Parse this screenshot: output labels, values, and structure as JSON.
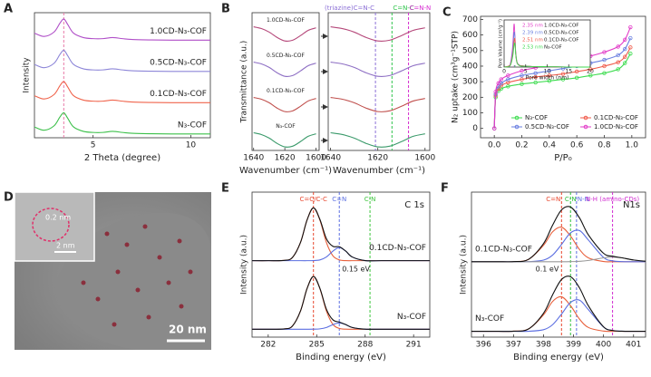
{
  "chart_data": [
    {
      "type": "line",
      "panel_label": "A",
      "xlabel": "2 Theta (degree)",
      "ylabel": "Intensity",
      "xlim": [
        2,
        11
      ],
      "xticks": [
        5,
        10
      ],
      "ylim": [
        -0.1,
        3.9
      ],
      "x": [
        2,
        2.5,
        3,
        3.3,
        3.5,
        3.7,
        4,
        4.5,
        5,
        5.5,
        6,
        6.5,
        7,
        8,
        9,
        10,
        11
      ],
      "series": [
        {
          "name": "1.0CD-N₃-COF",
          "color": "#b04fc8",
          "values": [
            3.245,
            3.14,
            3.28,
            3.56,
            3.7,
            3.525,
            3.245,
            3.105,
            3.07,
            3.07,
            3.105,
            3.07,
            3.042,
            3.028,
            3.021,
            3.021,
            3.021
          ]
        },
        {
          "name": "0.5CD-N₃-COF",
          "color": "#8d86d8",
          "values": [
            2.245,
            2.14,
            2.28,
            2.56,
            2.7,
            2.525,
            2.245,
            2.105,
            2.07,
            2.07,
            2.105,
            2.07,
            2.042,
            2.028,
            2.021,
            2.021,
            2.021
          ]
        },
        {
          "name": "0.1CD-N₃-COF",
          "color": "#f0644c",
          "values": [
            1.245,
            1.14,
            1.28,
            1.56,
            1.7,
            1.525,
            1.245,
            1.105,
            1.07,
            1.07,
            1.105,
            1.07,
            1.042,
            1.028,
            1.021,
            1.021,
            1.021
          ]
        },
        {
          "name": "N₃-COF",
          "color": "#3cc04a",
          "values": [
            0.245,
            0.14,
            0.28,
            0.56,
            0.7,
            0.525,
            0.245,
            0.105,
            0.07,
            0.07,
            0.105,
            0.07,
            0.042,
            0.028,
            0.021,
            0.021,
            0.021
          ]
        }
      ],
      "vlines": [
        {
          "value": 3.5,
          "color": "#e87aa8"
        }
      ]
    },
    {
      "type": "line",
      "panel_label": "B",
      "xlabel": "Wavenumber (cm⁻¹)",
      "ylabel": "Transmittance (a.u.)",
      "xlim": [
        1641,
        1598
      ],
      "xticks": [
        1640,
        1620,
        1600
      ],
      "ylim": [
        0,
        3.9
      ],
      "x": [
        1640,
        1635,
        1630,
        1625,
        1620,
        1615,
        1610,
        1605,
        1600
      ],
      "series": [
        {
          "name": "1.0CD-N₃-COF",
          "color": "#b5487a",
          "values": [
            3.5,
            3.45,
            3.35,
            3.2,
            3.1,
            3.12,
            3.25,
            3.4,
            3.47
          ]
        },
        {
          "name": "0.5CD-N₃-COF",
          "color": "#8e6fc4",
          "values": [
            2.5,
            2.45,
            2.35,
            2.2,
            2.1,
            2.12,
            2.25,
            2.4,
            2.47
          ]
        },
        {
          "name": "0.1CD-N₃-COF",
          "color": "#c0504d",
          "values": [
            1.5,
            1.45,
            1.35,
            1.2,
            1.1,
            1.12,
            1.25,
            1.4,
            1.47
          ]
        },
        {
          "name": "N₃-COF",
          "color": "#3a9a6a",
          "values": [
            0.5,
            0.45,
            0.35,
            0.2,
            0.1,
            0.12,
            0.25,
            0.4,
            0.47
          ]
        }
      ]
    },
    {
      "type": "line",
      "xlabel": "Wavenumber (cm⁻¹)",
      "xlim": [
        1641,
        1598
      ],
      "xticks": [
        1640,
        1620,
        1600
      ],
      "ylim": [
        0,
        3.9
      ],
      "x": [
        1640,
        1635,
        1630,
        1625,
        1620,
        1615,
        1610,
        1605,
        1600
      ],
      "series": [
        {
          "color": "#b5487a",
          "values": [
            3.5,
            3.45,
            3.35,
            3.2,
            3.1,
            3.12,
            3.25,
            3.4,
            3.47
          ]
        },
        {
          "color": "#8e6fc4",
          "values": [
            2.5,
            2.45,
            2.35,
            2.2,
            2.1,
            2.12,
            2.25,
            2.4,
            2.47
          ]
        },
        {
          "color": "#c0504d",
          "values": [
            1.5,
            1.45,
            1.35,
            1.2,
            1.1,
            1.12,
            1.25,
            1.4,
            1.47
          ]
        },
        {
          "color": "#3a9a6a",
          "values": [
            0.5,
            0.45,
            0.35,
            0.2,
            0.1,
            0.12,
            0.25,
            0.4,
            0.47
          ]
        }
      ],
      "vlines": [
        {
          "value": 1621,
          "label": "(triazine)C=N-C",
          "color": "#8b6fd6"
        },
        {
          "value": 1614,
          "label": "C=N-C",
          "color": "#2ec44a"
        },
        {
          "value": 1607,
          "label": "C=N-N",
          "color": "#d62bd0"
        }
      ]
    },
    {
      "type": "line",
      "markers": true,
      "panel_label": "C",
      "xlabel": "P/P₀",
      "ylabel": "N₂ uptake (cm³g⁻¹STP)",
      "xlim": [
        -0.1,
        1.1
      ],
      "xticks": [
        {
          "value": 0,
          "label": "0.0"
        },
        0.2,
        0.4,
        0.6,
        0.8,
        {
          "value": 1,
          "label": "1.0"
        }
      ],
      "ylim": [
        -60,
        720
      ],
      "yticks": [
        0,
        100,
        200,
        300,
        400,
        500,
        600,
        700
      ],
      "legend": "lower right",
      "x": [
        0,
        0.01,
        0.03,
        0.05,
        0.1,
        0.2,
        0.3,
        0.4,
        0.5,
        0.6,
        0.7,
        0.8,
        0.9,
        0.95,
        0.99
      ],
      "series": [
        {
          "name": "N₃-COF",
          "color": "#3ddc4f",
          "values": [
            0,
            200,
            240,
            255,
            270,
            285,
            295,
            305,
            315,
            325,
            340,
            355,
            380,
            420,
            480
          ]
        },
        {
          "name": "0.1CD-N₃-COF",
          "color": "#f05a4a",
          "values": [
            0,
            210,
            255,
            275,
            295,
            315,
            330,
            340,
            350,
            365,
            380,
            400,
            425,
            460,
            520
          ]
        },
        {
          "name": "0.5CD-N₃-COF",
          "color": "#6a7fe0",
          "values": [
            0,
            220,
            270,
            290,
            315,
            340,
            355,
            370,
            385,
            400,
            420,
            440,
            470,
            510,
            580
          ]
        },
        {
          "name": "1.0CD-N₃-COF",
          "color": "#e23cc8",
          "values": [
            0,
            235,
            290,
            315,
            340,
            370,
            390,
            410,
            425,
            445,
            465,
            490,
            525,
            570,
            650
          ]
        }
      ]
    },
    {
      "type": "line",
      "inset": true,
      "xlabel": "Pore width (nm)",
      "ylabel": "Pore Volume (cm³g⁻¹)",
      "xlim": [
        0,
        20
      ],
      "xticks": [
        0,
        5,
        10,
        15,
        20
      ],
      "ylim": [
        0,
        1.1
      ],
      "x": [
        0,
        1,
        1.5,
        2,
        2.3,
        2.5,
        2.7,
        3,
        3.5,
        4,
        5,
        7,
        10,
        15,
        20
      ],
      "series": [
        {
          "name": "1.0CD-N₃-COF",
          "color": "#e23cc8",
          "values": [
            0,
            0.02,
            0.1,
            0.5,
            1.0,
            0.75,
            0.35,
            0.12,
            0.05,
            0.03,
            0.02,
            0.01,
            0.01,
            0,
            0
          ]
        },
        {
          "name": "0.5CD-N₃-COF",
          "color": "#6a7fe0",
          "values": [
            0,
            0.02,
            0.08,
            0.4,
            0.8,
            0.7,
            0.3,
            0.1,
            0.04,
            0.03,
            0.02,
            0.01,
            0.01,
            0,
            0
          ]
        },
        {
          "name": "0.1CD-N₃-COF",
          "color": "#f05a4a",
          "values": [
            0,
            0.02,
            0.06,
            0.3,
            0.6,
            0.65,
            0.3,
            0.1,
            0.04,
            0.03,
            0.02,
            0.01,
            0.01,
            0,
            0
          ]
        },
        {
          "name": "N₃-COF",
          "color": "#3ddc4f",
          "values": [
            0,
            0.01,
            0.05,
            0.25,
            0.5,
            0.55,
            0.3,
            0.1,
            0.04,
            0.02,
            0.02,
            0.01,
            0.01,
            0,
            0
          ]
        }
      ],
      "peaks": [
        2.35,
        2.39,
        2.51,
        2.53
      ],
      "peak_labels": [
        "2.35 nm",
        "2.39 nm",
        "2.51 nm",
        "2.53 nm"
      ]
    },
    {
      "type": "line",
      "panel_label": "E",
      "xlabel": "Binding energy (eV)",
      "ylabel": "Intensity (a.u.)",
      "xlim": [
        281,
        292
      ],
      "xticks": [
        282,
        285,
        288,
        291
      ],
      "ylim": [
        -0.15,
        2.6
      ],
      "x": [
        281,
        282,
        283,
        283.5,
        284,
        284.4,
        284.8,
        285.2,
        285.6,
        286,
        286.4,
        286.8,
        287.2,
        288,
        289,
        290,
        291,
        292
      ],
      "series": [
        {
          "color": "#e8603c",
          "values": [
            1.3,
            1.3,
            1.305,
            1.361,
            1.647,
            2.068,
            2.3,
            2.068,
            1.647,
            1.393,
            1.315,
            1.301,
            1.3,
            1.3,
            1.3,
            1.3,
            1.3,
            1.3
          ]
        },
        {
          "color": "#5b6ee1",
          "values": [
            1.3,
            1.3,
            1.3,
            1.3,
            1.3,
            1.3,
            1.302,
            1.314,
            1.37,
            1.48,
            1.55,
            1.48,
            1.37,
            1.302,
            1.3,
            1.3,
            1.3,
            1.3
          ]
        },
        {
          "color": "#111111",
          "values": [
            1.3,
            1.3,
            1.305,
            1.361,
            1.647,
            2.068,
            2.302,
            2.082,
            1.717,
            1.573,
            1.565,
            1.481,
            1.37,
            1.302,
            1.3,
            1.3,
            1.3,
            1.3
          ]
        },
        {
          "color": "#e8603c",
          "values": [
            0,
            0,
            0.005,
            0.061,
            0.347,
            0.768,
            1,
            0.768,
            0.347,
            0.093,
            0.015,
            0.001,
            0,
            0,
            0,
            0,
            0,
            0
          ]
        },
        {
          "color": "#5b6ee1",
          "values": [
            0,
            0,
            0,
            0,
            0,
            0,
            0.001,
            0.007,
            0.033,
            0.087,
            0.12,
            0.087,
            0.033,
            0.001,
            0,
            0,
            0,
            0
          ]
        },
        {
          "color": "#111111",
          "values": [
            0,
            0,
            0.005,
            0.061,
            0.347,
            0.768,
            1.001,
            0.775,
            0.38,
            0.18,
            0.135,
            0.088,
            0.033,
            0.001,
            0,
            0,
            0,
            0
          ]
        }
      ],
      "vlines": [
        {
          "value": 284.8,
          "label": "C=C/C-C",
          "color": "#e8452c"
        },
        {
          "value": 286.4,
          "label": "C=N",
          "color": "#5b6ee1"
        },
        {
          "value": 288.3,
          "label": "C-N",
          "color": "#3cc43c"
        }
      ],
      "set_labels": [
        "0.1CD-N₃-COF",
        "N₃-COF"
      ],
      "core_level": "C 1s",
      "annotations": [
        "0.15 eV"
      ]
    },
    {
      "type": "line",
      "panel_label": "F",
      "xlabel": "Binding energy (eV)",
      "ylabel": "Intensity (a.u.)",
      "xlim": [
        395.6,
        401.4
      ],
      "xticks": [
        396,
        397,
        398,
        399,
        400,
        401
      ],
      "ylim": [
        -0.1,
        2.4
      ],
      "x": [
        395.6,
        396,
        396.5,
        397,
        397.5,
        398,
        398.3,
        398.6,
        398.9,
        399.2,
        399.5,
        400,
        400.3,
        400.6,
        401,
        401.4
      ],
      "series": [
        {
          "color": "#e8603c",
          "values": [
            1.2,
            1.2,
            1.2,
            1.202,
            1.24,
            1.484,
            1.714,
            1.796,
            1.643,
            1.411,
            1.265,
            1.204,
            1.2,
            1.2,
            1.2,
            1.2
          ]
        },
        {
          "color": "#5b6ee1",
          "values": [
            1.2,
            1.2,
            1.2,
            1.2,
            1.201,
            1.228,
            1.313,
            1.497,
            1.698,
            1.737,
            1.571,
            1.274,
            1.215,
            1.202,
            1.2,
            1.2
          ]
        },
        {
          "color": "#999999",
          "values": [
            1.2,
            1.2,
            1.2,
            1.2,
            1.2,
            1.2,
            1.2,
            1.2,
            1.202,
            1.207,
            1.222,
            1.267,
            1.28,
            1.267,
            1.23,
            1.207
          ]
        },
        {
          "color": "#111111",
          "values": [
            1.2,
            1.2,
            1.2,
            1.202,
            1.241,
            1.512,
            1.827,
            2.093,
            2.143,
            1.955,
            1.658,
            1.345,
            1.295,
            1.269,
            1.23,
            1.207
          ]
        },
        {
          "color": "#e8603c",
          "values": [
            0,
            0,
            0,
            0.002,
            0.04,
            0.284,
            0.514,
            0.596,
            0.443,
            0.211,
            0.065,
            0.004,
            0,
            0,
            0,
            0
          ]
        },
        {
          "color": "#5b6ee1",
          "values": [
            0,
            0,
            0,
            0,
            0.001,
            0.028,
            0.113,
            0.297,
            0.498,
            0.537,
            0.371,
            0.074,
            0.015,
            0.002,
            0,
            0
          ]
        },
        {
          "color": "#111111",
          "values": [
            0,
            0,
            0,
            0.002,
            0.041,
            0.312,
            0.627,
            0.893,
            0.941,
            0.748,
            0.436,
            0.078,
            0.015,
            0.002,
            0,
            0
          ]
        }
      ],
      "vlines": [
        {
          "value": 398.6,
          "label": "C=N",
          "color": "#e8452c"
        },
        {
          "value": 398.9,
          "label": "C-N",
          "color": "#2fbf3a"
        },
        {
          "value": 399.1,
          "label": "N-N",
          "color": "#5b6ee1"
        },
        {
          "value": 400.3,
          "label": "N-H (amino-CDs)",
          "color": "#d02bd0"
        }
      ],
      "set_labels": [
        "0.1CD-N₃-COF",
        "N₃-COF"
      ],
      "core_level": "N1s",
      "annotations": [
        "0.1 eV"
      ]
    }
  ],
  "image": {
    "label": "D",
    "inset_label": "0.2 nm",
    "inset_scale": "2 nm",
    "scale_bar": "20 nm"
  }
}
